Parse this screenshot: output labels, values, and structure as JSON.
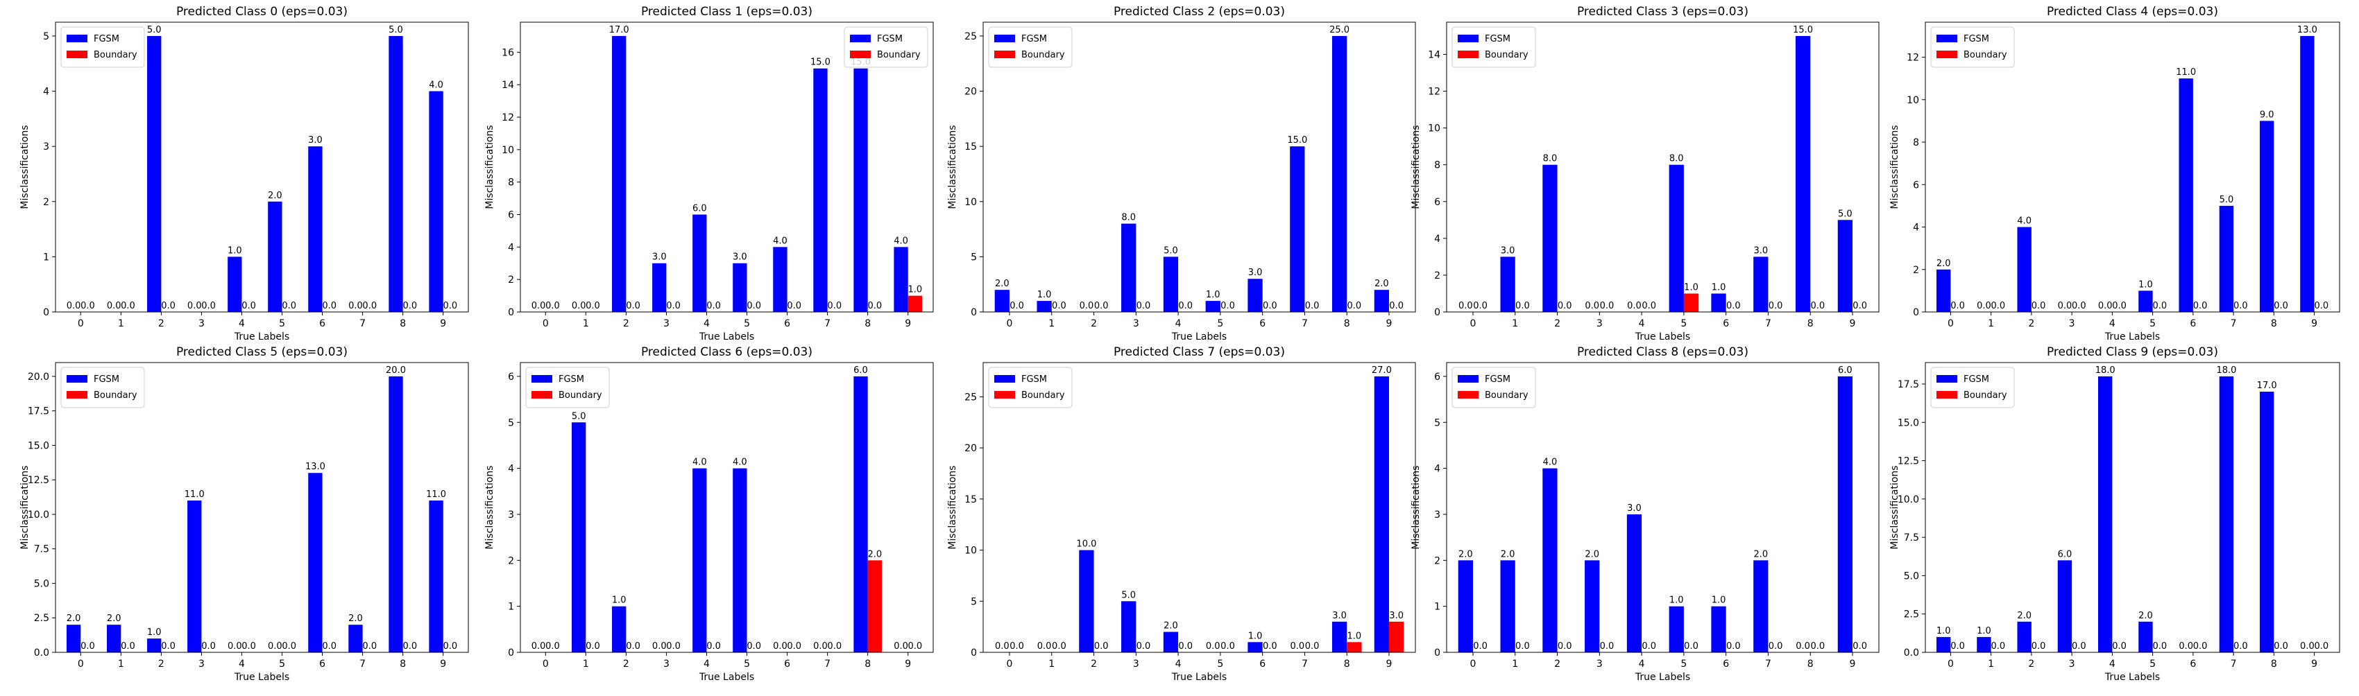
{
  "chart_data": [
    {
      "type": "bar",
      "title": "Predicted Class 0 (eps=0.03)",
      "xlabel": "True Labels",
      "ylabel": "Misclassifications",
      "categories": [
        "0",
        "1",
        "2",
        "3",
        "4",
        "5",
        "6",
        "7",
        "8",
        "9"
      ],
      "ylim": [
        0,
        5.25
      ],
      "yticks": [
        "0",
        "1",
        "2",
        "3",
        "4",
        "5"
      ],
      "legend_position": "top-left",
      "series": [
        {
          "name": "FGSM",
          "color": "#0000ff",
          "values": [
            0,
            0,
            5,
            0,
            1,
            2,
            3,
            0,
            5,
            4
          ]
        },
        {
          "name": "Boundary",
          "color": "#ff0000",
          "values": [
            0,
            0,
            0,
            0,
            0,
            0,
            0,
            0,
            0,
            0
          ]
        }
      ]
    },
    {
      "type": "bar",
      "title": "Predicted Class 1 (eps=0.03)",
      "xlabel": "True Labels",
      "ylabel": "Misclassifications",
      "categories": [
        "0",
        "1",
        "2",
        "3",
        "4",
        "5",
        "6",
        "7",
        "8",
        "9"
      ],
      "ylim": [
        0,
        17.85
      ],
      "yticks": [
        "0",
        "2",
        "4",
        "6",
        "8",
        "10",
        "12",
        "14",
        "16"
      ],
      "legend_position": "top-right",
      "series": [
        {
          "name": "FGSM",
          "color": "#0000ff",
          "values": [
            0,
            0,
            17,
            3,
            6,
            3,
            4,
            15,
            15,
            4
          ]
        },
        {
          "name": "Boundary",
          "color": "#ff0000",
          "values": [
            0,
            0,
            0,
            0,
            0,
            0,
            0,
            0,
            0,
            1
          ]
        }
      ]
    },
    {
      "type": "bar",
      "title": "Predicted Class 2 (eps=0.03)",
      "xlabel": "True Labels",
      "ylabel": "Misclassifications",
      "categories": [
        "0",
        "1",
        "2",
        "3",
        "4",
        "5",
        "6",
        "7",
        "8",
        "9"
      ],
      "ylim": [
        0,
        26.25
      ],
      "yticks": [
        "0",
        "5",
        "10",
        "15",
        "20",
        "25"
      ],
      "legend_position": "top-left",
      "series": [
        {
          "name": "FGSM",
          "color": "#0000ff",
          "values": [
            2,
            1,
            0,
            8,
            5,
            1,
            3,
            15,
            25,
            2
          ]
        },
        {
          "name": "Boundary",
          "color": "#ff0000",
          "values": [
            0,
            0,
            0,
            0,
            0,
            0,
            0,
            0,
            0,
            0
          ]
        }
      ]
    },
    {
      "type": "bar",
      "title": "Predicted Class 3 (eps=0.03)",
      "xlabel": "True Labels",
      "ylabel": "Misclassifications",
      "categories": [
        "0",
        "1",
        "2",
        "3",
        "4",
        "5",
        "6",
        "7",
        "8",
        "9"
      ],
      "ylim": [
        0,
        15.75
      ],
      "yticks": [
        "0",
        "2",
        "4",
        "6",
        "8",
        "10",
        "12",
        "14"
      ],
      "legend_position": "top-left",
      "series": [
        {
          "name": "FGSM",
          "color": "#0000ff",
          "values": [
            0,
            3,
            8,
            0,
            0,
            8,
            1,
            3,
            15,
            5
          ]
        },
        {
          "name": "Boundary",
          "color": "#ff0000",
          "values": [
            0,
            0,
            0,
            0,
            0,
            1,
            0,
            0,
            0,
            0
          ]
        }
      ]
    },
    {
      "type": "bar",
      "title": "Predicted Class 4 (eps=0.03)",
      "xlabel": "True Labels",
      "ylabel": "Misclassifications",
      "categories": [
        "0",
        "1",
        "2",
        "3",
        "4",
        "5",
        "6",
        "7",
        "8",
        "9"
      ],
      "ylim": [
        0,
        13.65
      ],
      "yticks": [
        "0",
        "2",
        "4",
        "6",
        "8",
        "10",
        "12"
      ],
      "legend_position": "top-left",
      "series": [
        {
          "name": "FGSM",
          "color": "#0000ff",
          "values": [
            2,
            0,
            4,
            0,
            0,
            1,
            11,
            5,
            9,
            13
          ]
        },
        {
          "name": "Boundary",
          "color": "#ff0000",
          "values": [
            0,
            0,
            0,
            0,
            0,
            0,
            0,
            0,
            0,
            0
          ]
        }
      ]
    },
    {
      "type": "bar",
      "title": "Predicted Class 5 (eps=0.03)",
      "xlabel": "True Labels",
      "ylabel": "Misclassifications",
      "categories": [
        "0",
        "1",
        "2",
        "3",
        "4",
        "5",
        "6",
        "7",
        "8",
        "9"
      ],
      "ylim": [
        0,
        21.0
      ],
      "yticks": [
        "0.0",
        "2.5",
        "5.0",
        "7.5",
        "10.0",
        "12.5",
        "15.0",
        "17.5",
        "20.0"
      ],
      "legend_position": "top-left",
      "series": [
        {
          "name": "FGSM",
          "color": "#0000ff",
          "values": [
            2,
            2,
            1,
            11,
            0,
            0,
            13,
            2,
            20,
            11
          ]
        },
        {
          "name": "Boundary",
          "color": "#ff0000",
          "values": [
            0,
            0,
            0,
            0,
            0,
            0,
            0,
            0,
            0,
            0
          ]
        }
      ]
    },
    {
      "type": "bar",
      "title": "Predicted Class 6 (eps=0.03)",
      "xlabel": "True Labels",
      "ylabel": "Misclassifications",
      "categories": [
        "0",
        "1",
        "2",
        "3",
        "4",
        "5",
        "6",
        "7",
        "8",
        "9"
      ],
      "ylim": [
        0,
        6.3
      ],
      "yticks": [
        "0",
        "1",
        "2",
        "3",
        "4",
        "5",
        "6"
      ],
      "legend_position": "top-left",
      "series": [
        {
          "name": "FGSM",
          "color": "#0000ff",
          "values": [
            0,
            5,
            1,
            0,
            4,
            4,
            0,
            0,
            6,
            0
          ]
        },
        {
          "name": "Boundary",
          "color": "#ff0000",
          "values": [
            0,
            0,
            0,
            0,
            0,
            0,
            0,
            0,
            2,
            0
          ]
        }
      ]
    },
    {
      "type": "bar",
      "title": "Predicted Class 7 (eps=0.03)",
      "xlabel": "True Labels",
      "ylabel": "Misclassifications",
      "categories": [
        "0",
        "1",
        "2",
        "3",
        "4",
        "5",
        "6",
        "7",
        "8",
        "9"
      ],
      "ylim": [
        0,
        28.35
      ],
      "yticks": [
        "0",
        "5",
        "10",
        "15",
        "20",
        "25"
      ],
      "legend_position": "top-left",
      "series": [
        {
          "name": "FGSM",
          "color": "#0000ff",
          "values": [
            0,
            0,
            10,
            5,
            2,
            0,
            1,
            0,
            3,
            27
          ]
        },
        {
          "name": "Boundary",
          "color": "#ff0000",
          "values": [
            0,
            0,
            0,
            0,
            0,
            0,
            0,
            0,
            1,
            3
          ]
        }
      ]
    },
    {
      "type": "bar",
      "title": "Predicted Class 8 (eps=0.03)",
      "xlabel": "True Labels",
      "ylabel": "Misclassifications",
      "categories": [
        "0",
        "1",
        "2",
        "3",
        "4",
        "5",
        "6",
        "7",
        "8",
        "9"
      ],
      "ylim": [
        0,
        6.3
      ],
      "yticks": [
        "0",
        "1",
        "2",
        "3",
        "4",
        "5",
        "6"
      ],
      "legend_position": "top-left",
      "series": [
        {
          "name": "FGSM",
          "color": "#0000ff",
          "values": [
            2,
            2,
            4,
            2,
            3,
            1,
            1,
            2,
            0,
            6
          ]
        },
        {
          "name": "Boundary",
          "color": "#ff0000",
          "values": [
            0,
            0,
            0,
            0,
            0,
            0,
            0,
            0,
            0,
            0
          ]
        }
      ]
    },
    {
      "type": "bar",
      "title": "Predicted Class 9 (eps=0.03)",
      "xlabel": "True Labels",
      "ylabel": "Misclassifications",
      "categories": [
        "0",
        "1",
        "2",
        "3",
        "4",
        "5",
        "6",
        "7",
        "8",
        "9"
      ],
      "ylim": [
        0,
        18.9
      ],
      "yticks": [
        "0.0",
        "2.5",
        "5.0",
        "7.5",
        "10.0",
        "12.5",
        "15.0",
        "17.5"
      ],
      "legend_position": "top-left",
      "series": [
        {
          "name": "FGSM",
          "color": "#0000ff",
          "values": [
            1,
            1,
            2,
            6,
            18,
            2,
            0,
            18,
            17,
            0
          ]
        },
        {
          "name": "Boundary",
          "color": "#ff0000",
          "values": [
            0,
            0,
            0,
            0,
            0,
            0,
            0,
            0,
            0,
            0
          ]
        }
      ]
    }
  ]
}
